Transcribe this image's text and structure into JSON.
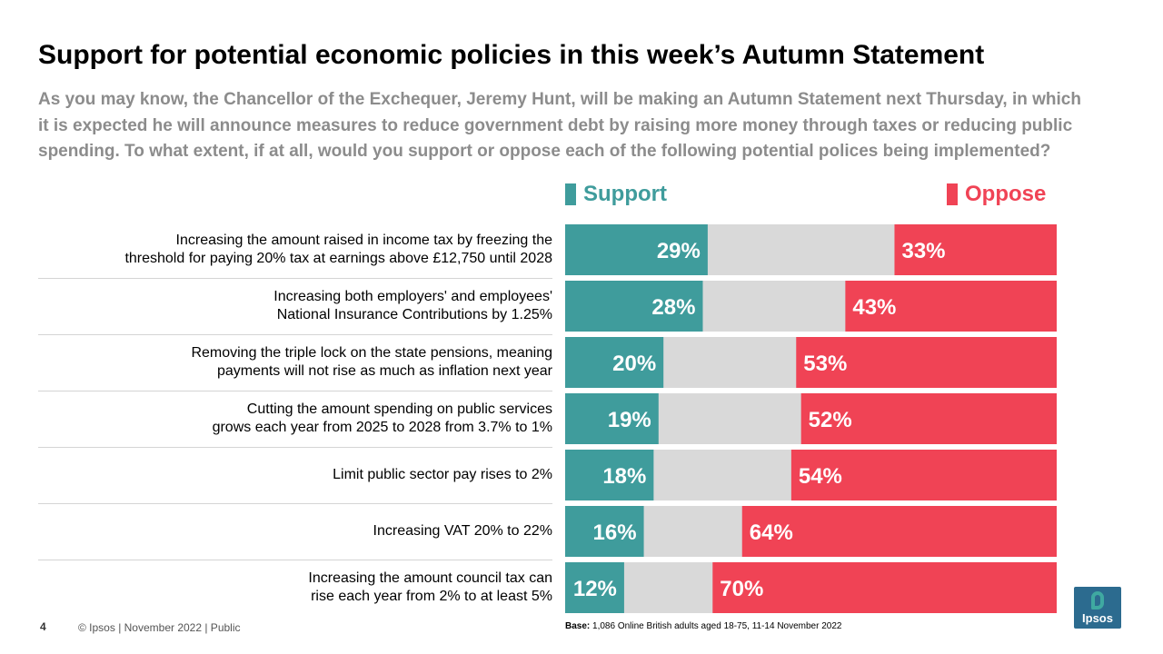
{
  "header": {
    "title": "Support for potential economic policies in this week’s Autumn Statement",
    "subtitle": "As you may know, the Chancellor of the Exchequer, Jeremy Hunt, will be making an Autumn Statement next Thursday, in which it is expected he will announce measures to reduce government debt by raising more money through taxes or reducing public spending. To what extent, if at all, would you support or oppose each of the following potential polices being implemented?"
  },
  "colors": {
    "support": "#3f9c9c",
    "oppose": "#f04355",
    "neutral": "#d9d9d9"
  },
  "chart_data": {
    "type": "bar",
    "orientation": "horizontal",
    "stacked": true,
    "xlim": [
      0,
      100
    ],
    "grid": false,
    "legend_position": "top",
    "categories": [
      "Increasing the amount raised in income tax by freezing the\nthreshold for paying 20% tax at earnings above £12,750 until 2028",
      "Increasing both employers' and employees'\nNational Insurance Contributions by 1.25%",
      "Removing the triple lock on the state pensions, meaning\npayments will not rise as much as inflation next year",
      "Cutting the amount spending on public services\ngrows each year from 2025 to 2028 from 3.7% to 1%",
      "Limit public sector pay rises to 2%",
      "Increasing VAT 20% to 22%",
      "Increasing the amount council tax can\nrise each year from 2% to at least 5%"
    ],
    "series": [
      {
        "name": "Support",
        "values": [
          29,
          28,
          20,
          19,
          18,
          16,
          12
        ],
        "labels": [
          "29%",
          "28%",
          "20%",
          "19%",
          "18%",
          "16%",
          "12%"
        ]
      },
      {
        "name": "Oppose",
        "values": [
          33,
          43,
          53,
          52,
          54,
          64,
          70
        ],
        "labels": [
          "33%",
          "43%",
          "53%",
          "52%",
          "54%",
          "64%",
          "70%"
        ]
      }
    ]
  },
  "footer": {
    "page_number": "4",
    "copyright": "© Ipsos | November  2022 | Public",
    "base_label": "Base:",
    "base_text": "1,086 Online British adults aged 18-75, 11-14 November 2022",
    "logo_text": "Ipsos"
  }
}
